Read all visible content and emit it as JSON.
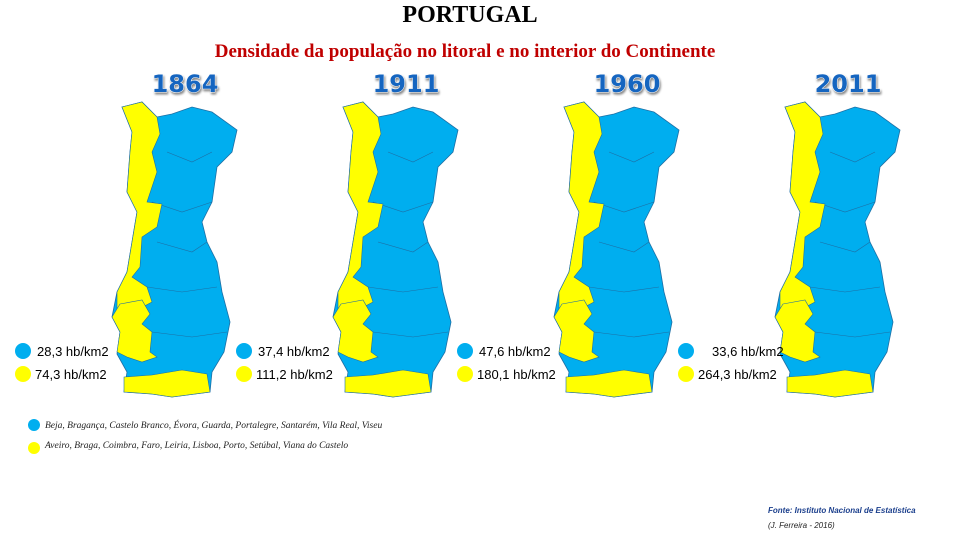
{
  "header": {
    "title": "PORTUGAL",
    "subtitle": "Densidade da população no litoral e no interior do Continente"
  },
  "maps": [
    {
      "year": "1864",
      "interior": "28,3 hb/km2",
      "litoral": "74,3 hb/km2"
    },
    {
      "year": "1911",
      "interior": "37,4 hb/km2",
      "litoral": "111,2 hb/km2"
    },
    {
      "year": "1960",
      "interior": "47,6 hb/km2",
      "litoral": "180,1 hb/km2"
    },
    {
      "year": "2011",
      "interior": "33,6 hb/km2",
      "litoral": "264,3 hb/km2"
    }
  ],
  "legend": {
    "interior": "Beja, Bragança, Castelo Branco, Évora, Guarda, Portalegre, Santarém, Vila Real, Viseu",
    "litoral": "Aveiro, Braga, Coimbra, Faro, Leiria, Lisboa, Porto, Setúbal, Viana do Castelo"
  },
  "source": "Fonte: Instituto Nacional de Estatística",
  "credit": "(J. Ferreira - 2016)"
}
